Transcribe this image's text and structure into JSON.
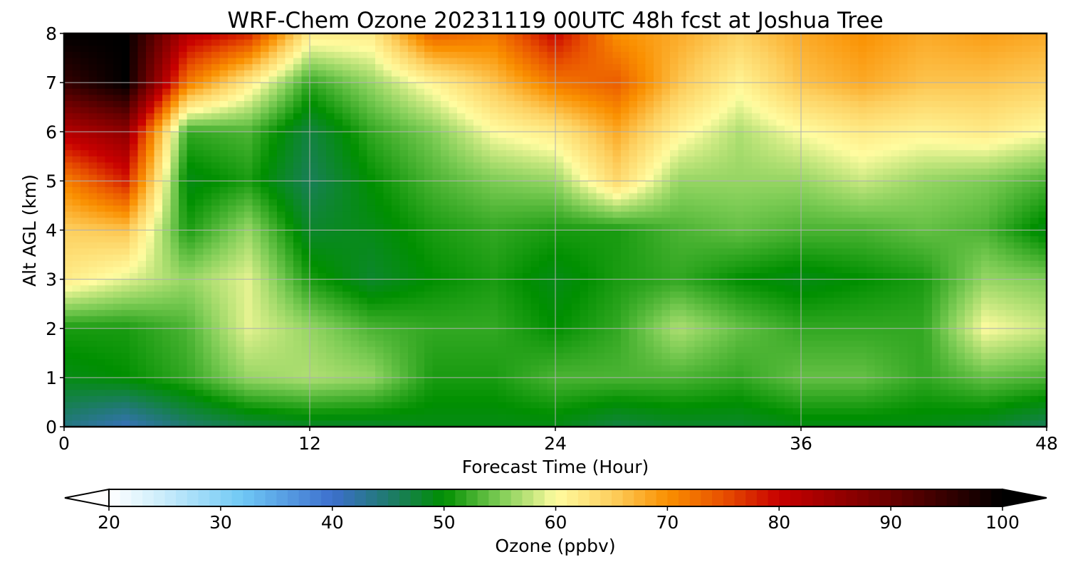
{
  "chart_data": {
    "type": "heatmap",
    "title": "WRF-Chem Ozone  20231119 00UTC 48h fcst at Joshua Tree",
    "xlabel": "Forecast Time (Hour)",
    "ylabel": "Alt AGL (km)",
    "xlim": [
      0,
      48
    ],
    "ylim": [
      0,
      8
    ],
    "xticks": [
      "0",
      "12",
      "24",
      "36",
      "48"
    ],
    "yticks": [
      "0",
      "1",
      "2",
      "3",
      "4",
      "5",
      "6",
      "7",
      "8"
    ],
    "grid": true,
    "x": [
      0,
      3,
      6,
      9,
      12,
      15,
      18,
      21,
      24,
      27,
      30,
      33,
      36,
      39,
      42,
      45,
      48
    ],
    "y": [
      0,
      1,
      2,
      3,
      4,
      5,
      6,
      7,
      8
    ],
    "z": [
      [
        44,
        41,
        45,
        47,
        48,
        48,
        49,
        49,
        49,
        47,
        48,
        48,
        49,
        49,
        49,
        48,
        46
      ],
      [
        49,
        50,
        52,
        56,
        57,
        56,
        51,
        51,
        53,
        53,
        53,
        52,
        54,
        54,
        52,
        54,
        53
      ],
      [
        51,
        51,
        53,
        59,
        56,
        53,
        52,
        52,
        50,
        52,
        57,
        54,
        52,
        52,
        52,
        60,
        58
      ],
      [
        62,
        59,
        56,
        59,
        51,
        48,
        50,
        51,
        49,
        51,
        52,
        50,
        49,
        50,
        51,
        56,
        55
      ],
      [
        65,
        66,
        51,
        56,
        48,
        49,
        51,
        52,
        51,
        51,
        53,
        54,
        53,
        53,
        54,
        53,
        49
      ],
      [
        71,
        78,
        49,
        51,
        46,
        50,
        53,
        55,
        56,
        64,
        56,
        56,
        56,
        58,
        56,
        55,
        53
      ],
      [
        82,
        86,
        52,
        53,
        47,
        52,
        55,
        60,
        62,
        68,
        61,
        57,
        60,
        62,
        61,
        62,
        60
      ],
      [
        95,
        100,
        72,
        62,
        52,
        56,
        61,
        66,
        72,
        74,
        66,
        61,
        66,
        68,
        66,
        66,
        65
      ],
      [
        100,
        100,
        82,
        78,
        62,
        62,
        74,
        72,
        80,
        70,
        68,
        65,
        68,
        70,
        68,
        69,
        68
      ]
    ],
    "colorbar": {
      "label": "Ozone  (ppbv)",
      "min": 20,
      "max": 100,
      "ticks": [
        "20",
        "30",
        "40",
        "50",
        "60",
        "70",
        "80",
        "90",
        "100"
      ],
      "extend": "both",
      "colors": [
        {
          "v": 20,
          "c": "#ffffff"
        },
        {
          "v": 25,
          "c": "#c8ecfb"
        },
        {
          "v": 32,
          "c": "#6fc8f5"
        },
        {
          "v": 40,
          "c": "#3d6fcd"
        },
        {
          "v": 45,
          "c": "#1f7a6e"
        },
        {
          "v": 50,
          "c": "#008f00"
        },
        {
          "v": 55,
          "c": "#7dcc55"
        },
        {
          "v": 58,
          "c": "#c8e880"
        },
        {
          "v": 60,
          "c": "#fffca0"
        },
        {
          "v": 65,
          "c": "#fdd060"
        },
        {
          "v": 70,
          "c": "#fa9000"
        },
        {
          "v": 75,
          "c": "#e85000"
        },
        {
          "v": 80,
          "c": "#c80000"
        },
        {
          "v": 90,
          "c": "#6a0000"
        },
        {
          "v": 100,
          "c": "#000000"
        }
      ]
    }
  }
}
